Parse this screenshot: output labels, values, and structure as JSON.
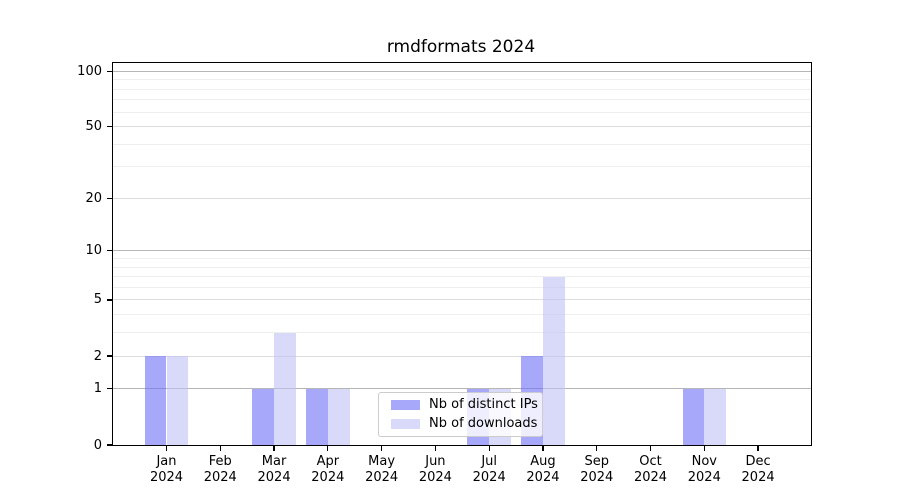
{
  "chart_data": {
    "type": "bar",
    "title": "rmdformats 2024",
    "categories": [
      "Jan",
      "Feb",
      "Mar",
      "Apr",
      "May",
      "Jun",
      "Jul",
      "Aug",
      "Sep",
      "Oct",
      "Nov",
      "Dec"
    ],
    "year_label": "2024",
    "series": [
      {
        "name": "Nb of distinct IPs",
        "color": "#6e6ef6",
        "values": [
          2,
          0,
          1,
          1,
          0,
          0,
          1,
          2,
          0,
          0,
          1,
          0
        ]
      },
      {
        "name": "Nb of downloads",
        "color": "#c0c0f6",
        "values": [
          2,
          0,
          3,
          1,
          0,
          0,
          1,
          7,
          0,
          0,
          1,
          0
        ]
      }
    ],
    "bar_alpha": 0.6,
    "y_scale": "log1p",
    "ylim": [
      0,
      111
    ],
    "y_ticks": [
      0,
      1,
      2,
      5,
      10,
      20,
      50,
      100
    ],
    "y_minor_gridlines": [
      3,
      4,
      6,
      7,
      8,
      9,
      30,
      40,
      60,
      70,
      80,
      90
    ],
    "grid": true,
    "legend_position": "inside-bottom-center",
    "colors": {
      "grid_major_power10": "#b6b6b6",
      "grid_major": "#dcdcdc",
      "grid_minor": "#eeeeee",
      "axis": "#000000",
      "text": "#000000",
      "legend_border": "#cccccc",
      "legend_bg": "rgba(255,255,255,0.8)",
      "plot_bg": "#ffffff"
    }
  }
}
